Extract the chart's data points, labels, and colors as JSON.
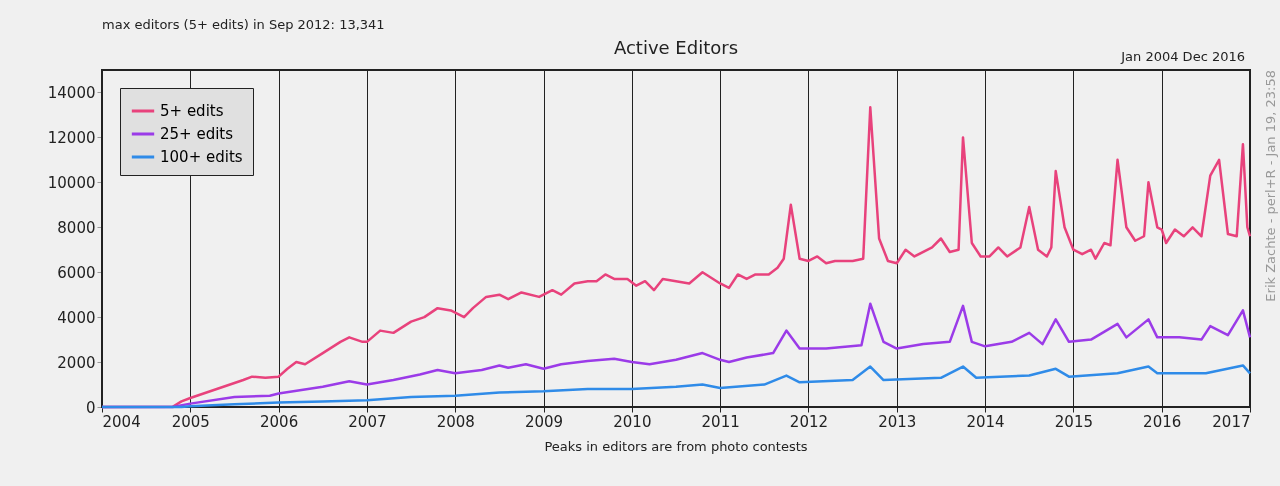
{
  "chart_data": {
    "type": "line",
    "title": "Active Editors",
    "annotations": [
      "max editors (5+ edits) in Sep 2012: 13,341",
      "Jan 2004 Dec 2016",
      "Peaks in editors are from photo contests",
      "Erik Zachte - perl+R - Jan 19, 23:58"
    ],
    "xlim": [
      2004,
      2017
    ],
    "xticks": [
      2004,
      2005,
      2006,
      2007,
      2008,
      2009,
      2010,
      2011,
      2012,
      2013,
      2014,
      2015,
      2016,
      2017
    ],
    "ylim": [
      0,
      15000
    ],
    "yticks": [
      0,
      2000,
      4000,
      6000,
      8000,
      10000,
      12000,
      14000
    ],
    "grid": "x",
    "legend": "top left",
    "line_style": "solid",
    "series": [
      {
        "name": "5+ edits",
        "color": "#e8427c",
        "x": [
          2004.0,
          2004.8,
          2004.9,
          2005.0,
          2005.3,
          2005.6,
          2005.7,
          2005.85,
          2006.0,
          2006.1,
          2006.2,
          2006.3,
          2006.5,
          2006.7,
          2006.8,
          2006.95,
          2007.0,
          2007.15,
          2007.3,
          2007.5,
          2007.65,
          2007.8,
          2007.95,
          2008.1,
          2008.2,
          2008.35,
          2008.5,
          2008.6,
          2008.75,
          2008.95,
          2009.1,
          2009.2,
          2009.35,
          2009.5,
          2009.6,
          2009.7,
          2009.8,
          2009.95,
          2010.05,
          2010.15,
          2010.25,
          2010.35,
          2010.5,
          2010.65,
          2010.8,
          2011.0,
          2011.1,
          2011.2,
          2011.3,
          2011.4,
          2011.55,
          2011.65,
          2011.72,
          2011.8,
          2011.9,
          2012.0,
          2012.1,
          2012.2,
          2012.3,
          2012.5,
          2012.62,
          2012.7,
          2012.8,
          2012.9,
          2013.0,
          2013.1,
          2013.2,
          2013.4,
          2013.5,
          2013.6,
          2013.7,
          2013.75,
          2013.85,
          2013.95,
          2014.05,
          2014.15,
          2014.25,
          2014.4,
          2014.5,
          2014.6,
          2014.7,
          2014.75,
          2014.8,
          2014.9,
          2015.0,
          2015.1,
          2015.2,
          2015.25,
          2015.35,
          2015.42,
          2015.5,
          2015.6,
          2015.7,
          2015.8,
          2015.85,
          2015.95,
          2016.0,
          2016.05,
          2016.15,
          2016.25,
          2016.35,
          2016.45,
          2016.55,
          2016.65,
          2016.75,
          2016.85,
          2016.92,
          2016.97,
          2017.0
        ],
        "values": [
          0,
          10,
          250,
          400,
          800,
          1200,
          1350,
          1300,
          1350,
          1700,
          2000,
          1900,
          2400,
          2900,
          3100,
          2900,
          2900,
          3400,
          3300,
          3800,
          4000,
          4400,
          4300,
          4000,
          4400,
          4900,
          5000,
          4800,
          5100,
          4900,
          5200,
          5000,
          5500,
          5600,
          5600,
          5900,
          5700,
          5700,
          5400,
          5600,
          5200,
          5700,
          5600,
          5500,
          6000,
          5500,
          5300,
          5900,
          5700,
          5900,
          5900,
          6200,
          6600,
          9000,
          6600,
          6500,
          6700,
          6400,
          6500,
          6500,
          6600,
          13341,
          7500,
          6500,
          6400,
          7000,
          6700,
          7100,
          7500,
          6900,
          7000,
          12000,
          7300,
          6700,
          6700,
          7100,
          6700,
          7100,
          8900,
          7000,
          6700,
          7100,
          10500,
          8000,
          7000,
          6800,
          7000,
          6600,
          7300,
          7200,
          11000,
          8000,
          7400,
          7600,
          10000,
          8000,
          7900,
          7300,
          7900,
          7600,
          8000,
          7600,
          10300,
          11000,
          7700,
          7600,
          11700,
          8000,
          7600
        ]
      },
      {
        "name": "25+ edits",
        "color": "#9b3be8",
        "x": [
          2004.0,
          2004.8,
          2005.0,
          2005.5,
          2005.9,
          2006.0,
          2006.5,
          2006.8,
          2007.0,
          2007.3,
          2007.6,
          2007.8,
          2008.0,
          2008.3,
          2008.5,
          2008.6,
          2008.8,
          2009.0,
          2009.2,
          2009.5,
          2009.8,
          2010.0,
          2010.2,
          2010.5,
          2010.8,
          2011.0,
          2011.1,
          2011.3,
          2011.6,
          2011.75,
          2011.9,
          2012.2,
          2012.6,
          2012.7,
          2012.85,
          2013.0,
          2013.3,
          2013.6,
          2013.75,
          2013.85,
          2014.0,
          2014.3,
          2014.5,
          2014.65,
          2014.8,
          2014.95,
          2015.2,
          2015.5,
          2015.6,
          2015.85,
          2015.95,
          2016.2,
          2016.45,
          2016.55,
          2016.75,
          2016.92,
          2017.0
        ],
        "values": [
          0,
          0,
          150,
          450,
          500,
          600,
          900,
          1150,
          1000,
          1200,
          1450,
          1650,
          1500,
          1650,
          1850,
          1750,
          1900,
          1700,
          1900,
          2050,
          2150,
          2000,
          1900,
          2100,
          2400,
          2100,
          2000,
          2200,
          2400,
          3400,
          2600,
          2600,
          2750,
          4600,
          2900,
          2600,
          2800,
          2900,
          4500,
          2900,
          2700,
          2900,
          3300,
          2800,
          3900,
          2900,
          3000,
          3700,
          3100,
          3900,
          3100,
          3100,
          3000,
          3600,
          3200,
          4300,
          3100
        ]
      },
      {
        "name": "100+ edits",
        "color": "#2f8be8",
        "x": [
          2004.0,
          2004.9,
          2005.0,
          2005.5,
          2006.0,
          2006.5,
          2007.0,
          2007.5,
          2008.0,
          2008.5,
          2009.0,
          2009.5,
          2010.0,
          2010.5,
          2010.8,
          2011.0,
          2011.5,
          2011.75,
          2011.9,
          2012.5,
          2012.7,
          2012.85,
          2013.5,
          2013.75,
          2013.9,
          2014.5,
          2014.8,
          2014.95,
          2015.5,
          2015.85,
          2015.95,
          2016.5,
          2016.92,
          2017.0
        ],
        "values": [
          0,
          0,
          30,
          120,
          200,
          250,
          300,
          450,
          500,
          650,
          700,
          800,
          800,
          900,
          1000,
          850,
          1000,
          1400,
          1100,
          1200,
          1800,
          1200,
          1300,
          1800,
          1300,
          1400,
          1700,
          1350,
          1500,
          1800,
          1500,
          1500,
          1850,
          1500
        ]
      }
    ]
  }
}
